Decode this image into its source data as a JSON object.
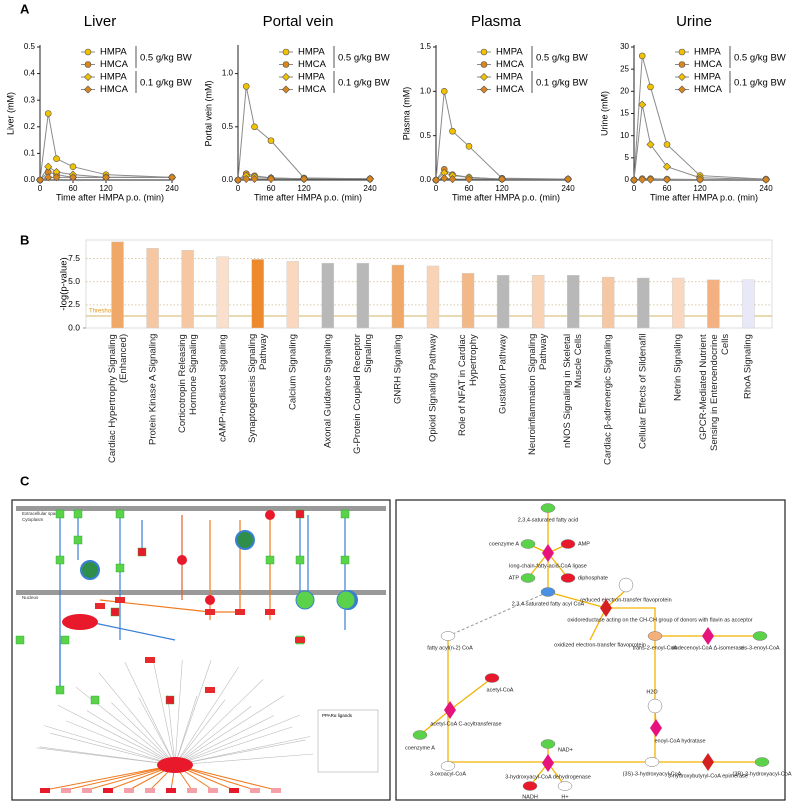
{
  "panel_labels": [
    "A",
    "B",
    "C"
  ],
  "chart_data": [
    {
      "type": "line",
      "title": "Liver",
      "ylabel": "Liver (mM)",
      "xlabel": "Time after HMPA p.o. (min)",
      "x": [
        0,
        15,
        30,
        60,
        120,
        240
      ],
      "xlim": [
        0,
        240
      ],
      "xticks": [
        0,
        60,
        120,
        240
      ],
      "ylim": [
        0,
        0.5
      ],
      "yticks": [
        {
          "value": 0,
          "label": "0.0"
        },
        0.1,
        0.2,
        0.3,
        0.4,
        0.5
      ],
      "legend_groups": [
        "0.5 g/kg BW",
        "0.1 g/kg BW"
      ],
      "series": [
        {
          "name": "HMPA",
          "color": "#f2c200",
          "marker": "circle",
          "values": [
            0,
            0.25,
            0.08,
            0.05,
            0.02,
            0.01
          ]
        },
        {
          "name": "HMCA",
          "color": "#d9861c",
          "marker": "circle",
          "values": [
            0,
            0.03,
            0.02,
            0.01,
            0.01,
            0.01
          ]
        },
        {
          "name": "HMPA",
          "color": "#f2c200",
          "marker": "diamond",
          "values": [
            0,
            0.05,
            0.03,
            0.02,
            0.01,
            0.01
          ]
        },
        {
          "name": "HMCA",
          "color": "#d9861c",
          "marker": "diamond",
          "values": [
            0,
            0.01,
            0.01,
            0.01,
            0.01,
            0.01
          ]
        }
      ]
    },
    {
      "type": "line",
      "title": "Portal vein",
      "ylabel": "Portal vein (mM)",
      "xlabel": "Time after HMPA p.o. (min)",
      "x": [
        0,
        15,
        30,
        60,
        120,
        240
      ],
      "xlim": [
        0,
        240
      ],
      "xticks": [
        0,
        60,
        120,
        240
      ],
      "ylim": [
        0,
        1.25
      ],
      "yticks": [
        {
          "value": 0,
          "label": "0.0"
        },
        0.5,
        {
          "value": 1,
          "label": "1.0"
        }
      ],
      "legend_groups": [
        "0.5 g/kg BW",
        "0.1 g/kg BW"
      ],
      "series": [
        {
          "name": "HMPA",
          "color": "#f2c200",
          "marker": "circle",
          "values": [
            0,
            0.88,
            0.5,
            0.37,
            0.02,
            0.01
          ]
        },
        {
          "name": "HMCA",
          "color": "#d9861c",
          "marker": "circle",
          "values": [
            0,
            0.06,
            0.04,
            0.02,
            0.01,
            0.01
          ]
        },
        {
          "name": "HMPA",
          "color": "#f2c200",
          "marker": "diamond",
          "values": [
            0,
            0.04,
            0.03,
            0.02,
            0.01,
            0.01
          ]
        },
        {
          "name": "HMCA",
          "color": "#d9861c",
          "marker": "diamond",
          "values": [
            0,
            0.01,
            0.01,
            0.01,
            0.01,
            0.01
          ]
        }
      ]
    },
    {
      "type": "line",
      "title": "Plasma",
      "ylabel": "Plasma (mM)",
      "xlabel": "Time after HMPA p.o. (min)",
      "x": [
        0,
        15,
        30,
        60,
        120,
        240
      ],
      "xlim": [
        0,
        240
      ],
      "xticks": [
        0,
        60,
        120,
        240
      ],
      "ylim": [
        0,
        1.5
      ],
      "yticks": [
        {
          "value": 0,
          "label": "0.0"
        },
        0.5,
        {
          "value": 1,
          "label": "1.0"
        },
        1.5
      ],
      "legend_groups": [
        "0.5 g/kg BW",
        "0.1 g/kg BW"
      ],
      "series": [
        {
          "name": "HMPA",
          "color": "#f2c200",
          "marker": "circle",
          "values": [
            0,
            1.0,
            0.55,
            0.38,
            0.02,
            0.01
          ]
        },
        {
          "name": "HMCA",
          "color": "#d9861c",
          "marker": "circle",
          "values": [
            0,
            0.12,
            0.06,
            0.03,
            0.01,
            0.01
          ]
        },
        {
          "name": "HMPA",
          "color": "#f2c200",
          "marker": "diamond",
          "values": [
            0,
            0.08,
            0.05,
            0.03,
            0.01,
            0.01
          ]
        },
        {
          "name": "HMCA",
          "color": "#d9861c",
          "marker": "diamond",
          "values": [
            0,
            0.02,
            0.01,
            0.01,
            0.01,
            0.01
          ]
        }
      ]
    },
    {
      "type": "line",
      "title": "Urine",
      "ylabel": "Urine (mM)",
      "xlabel": "Time after HMPA p.o. (min)",
      "x": [
        0,
        15,
        30,
        60,
        120,
        240
      ],
      "xlim": [
        0,
        240
      ],
      "xticks": [
        0,
        60,
        120,
        240
      ],
      "ylim": [
        0,
        30
      ],
      "yticks": [
        0,
        5,
        10,
        15,
        20,
        25,
        30
      ],
      "legend_groups": [
        "0.5 g/kg BW",
        "0.1 g/kg BW"
      ],
      "series": [
        {
          "name": "HMPA",
          "color": "#f2c200",
          "marker": "circle",
          "values": [
            0,
            28,
            21,
            8,
            1,
            0.2
          ]
        },
        {
          "name": "HMCA",
          "color": "#d9861c",
          "marker": "circle",
          "values": [
            0,
            0.3,
            0.3,
            0.2,
            0.1,
            0.1
          ]
        },
        {
          "name": "HMPA",
          "color": "#f2c200",
          "marker": "diamond",
          "values": [
            0,
            17,
            8,
            3,
            0.5,
            0.1
          ]
        },
        {
          "name": "HMCA",
          "color": "#d9861c",
          "marker": "diamond",
          "values": [
            0,
            0.1,
            0.1,
            0.1,
            0.1,
            0.1
          ]
        }
      ]
    },
    {
      "type": "bar",
      "ylabel": "-log(p-value)",
      "threshold": 1.3,
      "threshold_label": "Threshold",
      "ylim": [
        0,
        9.5
      ],
      "yticks": [
        {
          "value": 0,
          "label": "0.0"
        },
        2.5,
        {
          "value": 5,
          "label": "5.0"
        },
        7.5
      ],
      "grid": true,
      "categories": [
        "Cardiac Hypertrophy Signaling (Enhanced)",
        "Protein Kinase A Signaling",
        "Corticotropin Releasing Hormone Signaling",
        "cAMP-mediated signaling",
        "Synaptogenesis Signaling Pathway",
        "Calcium Signaling",
        "Axonal Guidance Signaling",
        "G-Protein Coupled Receptor Signaling",
        "GNRH Signaling",
        "Opioid Signaling Pathway",
        "Role of NFAT in Cardiac Hypertrophy",
        "Gustation Pathway",
        "Neuroinflammation Signaling Pathway",
        "nNOS Signaling in Skeletal Muscle Cells",
        "Cardiac β-adrenergic Signaling",
        "Cellular Effects of Sildenafil",
        "Netrin Signaling",
        "GPCR-Mediated Nutrient Sensing in Enteroendocrine Cells",
        "RhoA Signaling"
      ],
      "values": [
        9.3,
        8.6,
        8.4,
        7.7,
        7.4,
        7.2,
        7.0,
        7.0,
        6.8,
        6.7,
        5.9,
        5.7,
        5.7,
        5.7,
        5.5,
        5.4,
        5.4,
        5.2,
        5.2
      ],
      "colors": [
        "#f0a868",
        "#f5c7a3",
        "#f5c7a3",
        "#fae0cc",
        "#ee8a2e",
        "#fad8c0",
        "#b8b8b8",
        "#b8b8b8",
        "#f0a868",
        "#f8d3b5",
        "#f3b888",
        "#b8b8b8",
        "#f8d3b5",
        "#b8b8b8",
        "#f5c7a3",
        "#b8b8b8",
        "#fad8c0",
        "#f3b080",
        "#e8e8f8"
      ]
    }
  ],
  "diagram_left": {
    "labels": [
      "Extracellular space",
      "Cytoplasm",
      "Nucleus",
      "PPARα ligands"
    ]
  },
  "diagram_right": {
    "nodes": [
      {
        "label": "2,3,4-saturated fatty acid"
      },
      {
        "label": "coenzyme A"
      },
      {
        "label": "AMP"
      },
      {
        "label": "long-chain-fatty-acid-CoA ligase"
      },
      {
        "label": "ATP"
      },
      {
        "label": "diphosphate"
      },
      {
        "label": "2,3,4-saturated fatty acyl CoA"
      },
      {
        "label": "reduced electron-transfer flavoprotein"
      },
      {
        "label": "oxidoreductase acting on the CH-CH group of donors with flavin as acceptor"
      },
      {
        "label": "oxidized electron-transfer flavoprotein"
      },
      {
        "label": "fatty acyl(n-2) CoA"
      },
      {
        "label": "trans-2-enoyl-CoA"
      },
      {
        "label": "dodecenoyl-CoA Δ-isomerase"
      },
      {
        "label": "cis-3-enoyl-CoA"
      },
      {
        "label": "acetyl-CoA"
      },
      {
        "label": "H2O"
      },
      {
        "label": "enoyl-CoA hydratase"
      },
      {
        "label": "acetyl-CoA C-acyltransferase"
      },
      {
        "label": "coenzyme A"
      },
      {
        "label": "NAD+"
      },
      {
        "label": "3-oxoacyl-CoA"
      },
      {
        "label": "3-hydroxyacyl-CoA dehydrogenase"
      },
      {
        "label": "(3S)-3-hydroxyacyl-CoA"
      },
      {
        "label": "3-hydroxybutyryl-CoA epimerase"
      },
      {
        "label": "(3R)-3-hydroxyacyl-CoA"
      },
      {
        "label": "NADH"
      },
      {
        "label": "H+"
      }
    ]
  }
}
